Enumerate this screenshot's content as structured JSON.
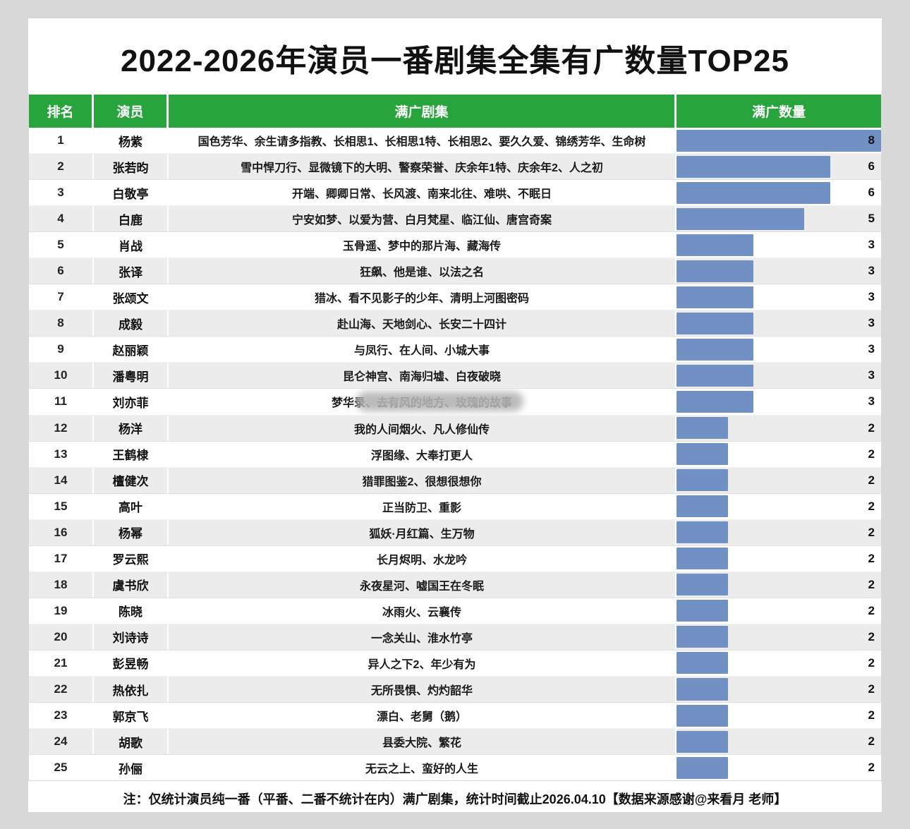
{
  "title": "2022-2026年演员一番剧集全集有广数量TOP25",
  "columns": {
    "rank": "排名",
    "actor": "演员",
    "dramas": "满广剧集",
    "count": "满广数量"
  },
  "footer_note": "注：仅统计演员纯一番（平番、二番不统计在内）满广剧集，统计时间截止2026.04.10【数据来源感谢@来看月 老师】",
  "colors": {
    "header_green": "#27a53c",
    "bar_blue": "#7191c4",
    "row_alt_gray": "#ececec"
  },
  "chart_data": {
    "type": "bar",
    "title": "2022-2026年演员一番剧集全集有广数量TOP25",
    "xlabel": "满广数量",
    "ylabel": "演员",
    "max_value": 8,
    "legend": "none",
    "rows": [
      {
        "rank": 1,
        "actor": "杨紫",
        "dramas": "国色芳华、余生请多指教、长相思1、长相思1特、长相思2、要久久爱、锦绣芳华、生命树",
        "count": 8
      },
      {
        "rank": 2,
        "actor": "张若昀",
        "dramas": "雪中悍刀行、显微镜下的大明、警察荣誉、庆余年1特、庆余年2、人之初",
        "count": 6
      },
      {
        "rank": 3,
        "actor": "白敬亭",
        "dramas": "开端、卿卿日常、长风渡、南来北往、难哄、不眠日",
        "count": 6
      },
      {
        "rank": 4,
        "actor": "白鹿",
        "dramas": "宁安如梦、以爱为营、白月梵星、临江仙、唐宫奇案",
        "count": 5
      },
      {
        "rank": 5,
        "actor": "肖战",
        "dramas": "玉骨遥、梦中的那片海、藏海传",
        "count": 3
      },
      {
        "rank": 6,
        "actor": "张译",
        "dramas": "狂飙、他是谁、以法之名",
        "count": 3
      },
      {
        "rank": 7,
        "actor": "张颂文",
        "dramas": "猎冰、看不见影子的少年、清明上河图密码",
        "count": 3
      },
      {
        "rank": 8,
        "actor": "成毅",
        "dramas": "赴山海、天地剑心、长安二十四计",
        "count": 3
      },
      {
        "rank": 9,
        "actor": "赵丽颖",
        "dramas": "与凤行、在人间、小城大事",
        "count": 3
      },
      {
        "rank": 10,
        "actor": "潘粤明",
        "dramas": "昆仑神宫、南海归墟、白夜破晓",
        "count": 3
      },
      {
        "rank": 11,
        "actor": "刘亦菲",
        "dramas": "梦华录、去有风的地方、玫瑰的故事",
        "count": 3,
        "obscured": true
      },
      {
        "rank": 12,
        "actor": "杨洋",
        "dramas": "我的人间烟火、凡人修仙传",
        "count": 2
      },
      {
        "rank": 13,
        "actor": "王鹤棣",
        "dramas": "浮图缘、大奉打更人",
        "count": 2
      },
      {
        "rank": 14,
        "actor": "檀健次",
        "dramas": "猎罪图鉴2、很想很想你",
        "count": 2
      },
      {
        "rank": 15,
        "actor": "高叶",
        "dramas": "正当防卫、重影",
        "count": 2
      },
      {
        "rank": 16,
        "actor": "杨幂",
        "dramas": "狐妖·月红篇、生万物",
        "count": 2
      },
      {
        "rank": 17,
        "actor": "罗云熙",
        "dramas": "长月烬明、水龙吟",
        "count": 2
      },
      {
        "rank": 18,
        "actor": "虞书欣",
        "dramas": "永夜星河、嘘国王在冬眠",
        "count": 2
      },
      {
        "rank": 19,
        "actor": "陈晓",
        "dramas": "冰雨火、云襄传",
        "count": 2
      },
      {
        "rank": 20,
        "actor": "刘诗诗",
        "dramas": "一念关山、淮水竹亭",
        "count": 2
      },
      {
        "rank": 21,
        "actor": "彭昱畅",
        "dramas": "异人之下2、年少有为",
        "count": 2
      },
      {
        "rank": 22,
        "actor": "热依扎",
        "dramas": "无所畏惧、灼灼韶华",
        "count": 2
      },
      {
        "rank": 23,
        "actor": "郭京飞",
        "dramas": "漂白、老舅（鹅）",
        "count": 2
      },
      {
        "rank": 24,
        "actor": "胡歌",
        "dramas": "县委大院、繁花",
        "count": 2
      },
      {
        "rank": 25,
        "actor": "孙俪",
        "dramas": "无云之上、蛮好的人生",
        "count": 2
      }
    ]
  }
}
